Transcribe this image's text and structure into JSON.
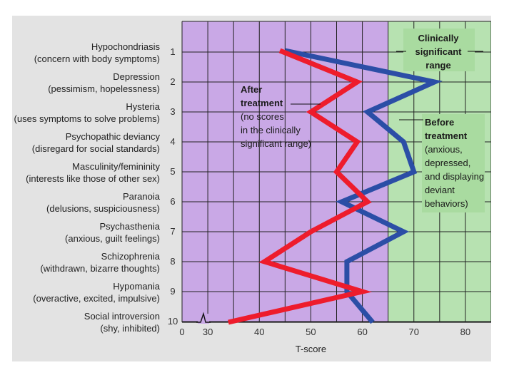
{
  "colors": {
    "figure_bg": "#e3e3e3",
    "normal_range_bg": "#c9a8e6",
    "clinical_range_bg": "#b7e2b1",
    "grid": "#222222",
    "before": "#2b4ea6",
    "after": "#ee1c2c"
  },
  "chart_data": {
    "type": "line",
    "title": "",
    "xlabel": "T-score",
    "ylabel": "",
    "xlim": [
      25,
      85
    ],
    "x_ticks": [
      0,
      30,
      40,
      50,
      60,
      70,
      80
    ],
    "axis_break": true,
    "clinical_threshold": 65,
    "grid": true,
    "scales": [
      {
        "number": "1",
        "name": "Hypochondriasis",
        "desc": "(concern with body symptoms)"
      },
      {
        "number": "2",
        "name": "Depression",
        "desc": "(pessimism, hopelessness)"
      },
      {
        "number": "3",
        "name": "Hysteria",
        "desc": "(uses symptoms to solve problems)"
      },
      {
        "number": "4",
        "name": "Psychopathic deviancy",
        "desc": "(disregard for social standards)"
      },
      {
        "number": "5",
        "name": "Masculinity/femininity",
        "desc": "(interests like those of other sex)"
      },
      {
        "number": "6",
        "name": "Paranoia",
        "desc": "(delusions, suspiciousness)"
      },
      {
        "number": "7",
        "name": "Psychasthenia",
        "desc": "(anxious, guilt feelings)"
      },
      {
        "number": "8",
        "name": "Schizophrenia",
        "desc": "(withdrawn, bizarre thoughts)"
      },
      {
        "number": "9",
        "name": "Hypomania",
        "desc": "(overactive, excited, impulsive)"
      },
      {
        "number": "10",
        "name": "Social introversion",
        "desc": "(shy, inhibited)"
      }
    ],
    "series": [
      {
        "key": "before",
        "values": [
          45,
          74,
          61,
          68,
          70,
          56,
          68,
          57,
          57,
          62
        ]
      },
      {
        "key": "after",
        "values": [
          44,
          59,
          50,
          59,
          55,
          61,
          50,
          41,
          60,
          34
        ]
      }
    ],
    "annotations": {
      "clinical": {
        "lines": [
          "Clinically",
          "significant",
          "range"
        ]
      },
      "after": {
        "title_lines": [
          "After",
          "treatment"
        ],
        "lines": [
          "(no scores",
          "in the clinically",
          "significant range)"
        ]
      },
      "before": {
        "title_lines": [
          "Before",
          "treatment"
        ],
        "lines": [
          "(anxious,",
          "depressed,",
          "and displaying",
          "deviant",
          "behaviors)"
        ]
      }
    }
  }
}
